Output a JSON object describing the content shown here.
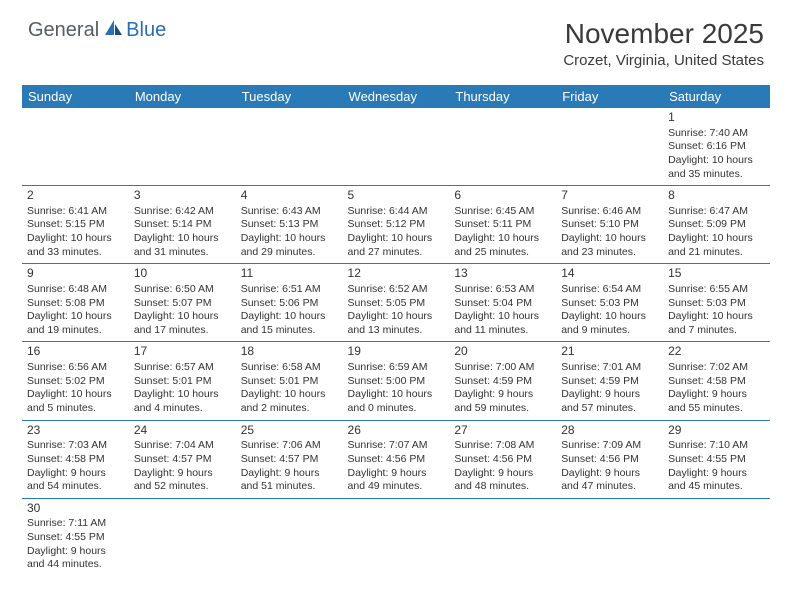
{
  "logo": {
    "general": "General",
    "blue": "Blue"
  },
  "title": "November 2025",
  "location": "Crozet, Virginia, United States",
  "colors": {
    "header_bg": "#2a7ab8",
    "header_fg": "#ffffff",
    "border": "#2a7ab8",
    "logo_gray": "#555c63",
    "logo_blue": "#2a6fb0"
  },
  "day_headers": [
    "Sunday",
    "Monday",
    "Tuesday",
    "Wednesday",
    "Thursday",
    "Friday",
    "Saturday"
  ],
  "weeks": [
    [
      null,
      null,
      null,
      null,
      null,
      null,
      {
        "n": "1",
        "sr": "Sunrise: 7:40 AM",
        "ss": "Sunset: 6:16 PM",
        "d1": "Daylight: 10 hours",
        "d2": "and 35 minutes."
      }
    ],
    [
      {
        "n": "2",
        "sr": "Sunrise: 6:41 AM",
        "ss": "Sunset: 5:15 PM",
        "d1": "Daylight: 10 hours",
        "d2": "and 33 minutes."
      },
      {
        "n": "3",
        "sr": "Sunrise: 6:42 AM",
        "ss": "Sunset: 5:14 PM",
        "d1": "Daylight: 10 hours",
        "d2": "and 31 minutes."
      },
      {
        "n": "4",
        "sr": "Sunrise: 6:43 AM",
        "ss": "Sunset: 5:13 PM",
        "d1": "Daylight: 10 hours",
        "d2": "and 29 minutes."
      },
      {
        "n": "5",
        "sr": "Sunrise: 6:44 AM",
        "ss": "Sunset: 5:12 PM",
        "d1": "Daylight: 10 hours",
        "d2": "and 27 minutes."
      },
      {
        "n": "6",
        "sr": "Sunrise: 6:45 AM",
        "ss": "Sunset: 5:11 PM",
        "d1": "Daylight: 10 hours",
        "d2": "and 25 minutes."
      },
      {
        "n": "7",
        "sr": "Sunrise: 6:46 AM",
        "ss": "Sunset: 5:10 PM",
        "d1": "Daylight: 10 hours",
        "d2": "and 23 minutes."
      },
      {
        "n": "8",
        "sr": "Sunrise: 6:47 AM",
        "ss": "Sunset: 5:09 PM",
        "d1": "Daylight: 10 hours",
        "d2": "and 21 minutes."
      }
    ],
    [
      {
        "n": "9",
        "sr": "Sunrise: 6:48 AM",
        "ss": "Sunset: 5:08 PM",
        "d1": "Daylight: 10 hours",
        "d2": "and 19 minutes."
      },
      {
        "n": "10",
        "sr": "Sunrise: 6:50 AM",
        "ss": "Sunset: 5:07 PM",
        "d1": "Daylight: 10 hours",
        "d2": "and 17 minutes."
      },
      {
        "n": "11",
        "sr": "Sunrise: 6:51 AM",
        "ss": "Sunset: 5:06 PM",
        "d1": "Daylight: 10 hours",
        "d2": "and 15 minutes."
      },
      {
        "n": "12",
        "sr": "Sunrise: 6:52 AM",
        "ss": "Sunset: 5:05 PM",
        "d1": "Daylight: 10 hours",
        "d2": "and 13 minutes."
      },
      {
        "n": "13",
        "sr": "Sunrise: 6:53 AM",
        "ss": "Sunset: 5:04 PM",
        "d1": "Daylight: 10 hours",
        "d2": "and 11 minutes."
      },
      {
        "n": "14",
        "sr": "Sunrise: 6:54 AM",
        "ss": "Sunset: 5:03 PM",
        "d1": "Daylight: 10 hours",
        "d2": "and 9 minutes."
      },
      {
        "n": "15",
        "sr": "Sunrise: 6:55 AM",
        "ss": "Sunset: 5:03 PM",
        "d1": "Daylight: 10 hours",
        "d2": "and 7 minutes."
      }
    ],
    [
      {
        "n": "16",
        "sr": "Sunrise: 6:56 AM",
        "ss": "Sunset: 5:02 PM",
        "d1": "Daylight: 10 hours",
        "d2": "and 5 minutes."
      },
      {
        "n": "17",
        "sr": "Sunrise: 6:57 AM",
        "ss": "Sunset: 5:01 PM",
        "d1": "Daylight: 10 hours",
        "d2": "and 4 minutes."
      },
      {
        "n": "18",
        "sr": "Sunrise: 6:58 AM",
        "ss": "Sunset: 5:01 PM",
        "d1": "Daylight: 10 hours",
        "d2": "and 2 minutes."
      },
      {
        "n": "19",
        "sr": "Sunrise: 6:59 AM",
        "ss": "Sunset: 5:00 PM",
        "d1": "Daylight: 10 hours",
        "d2": "and 0 minutes."
      },
      {
        "n": "20",
        "sr": "Sunrise: 7:00 AM",
        "ss": "Sunset: 4:59 PM",
        "d1": "Daylight: 9 hours",
        "d2": "and 59 minutes."
      },
      {
        "n": "21",
        "sr": "Sunrise: 7:01 AM",
        "ss": "Sunset: 4:59 PM",
        "d1": "Daylight: 9 hours",
        "d2": "and 57 minutes."
      },
      {
        "n": "22",
        "sr": "Sunrise: 7:02 AM",
        "ss": "Sunset: 4:58 PM",
        "d1": "Daylight: 9 hours",
        "d2": "and 55 minutes."
      }
    ],
    [
      {
        "n": "23",
        "sr": "Sunrise: 7:03 AM",
        "ss": "Sunset: 4:58 PM",
        "d1": "Daylight: 9 hours",
        "d2": "and 54 minutes."
      },
      {
        "n": "24",
        "sr": "Sunrise: 7:04 AM",
        "ss": "Sunset: 4:57 PM",
        "d1": "Daylight: 9 hours",
        "d2": "and 52 minutes."
      },
      {
        "n": "25",
        "sr": "Sunrise: 7:06 AM",
        "ss": "Sunset: 4:57 PM",
        "d1": "Daylight: 9 hours",
        "d2": "and 51 minutes."
      },
      {
        "n": "26",
        "sr": "Sunrise: 7:07 AM",
        "ss": "Sunset: 4:56 PM",
        "d1": "Daylight: 9 hours",
        "d2": "and 49 minutes."
      },
      {
        "n": "27",
        "sr": "Sunrise: 7:08 AM",
        "ss": "Sunset: 4:56 PM",
        "d1": "Daylight: 9 hours",
        "d2": "and 48 minutes."
      },
      {
        "n": "28",
        "sr": "Sunrise: 7:09 AM",
        "ss": "Sunset: 4:56 PM",
        "d1": "Daylight: 9 hours",
        "d2": "and 47 minutes."
      },
      {
        "n": "29",
        "sr": "Sunrise: 7:10 AM",
        "ss": "Sunset: 4:55 PM",
        "d1": "Daylight: 9 hours",
        "d2": "and 45 minutes."
      }
    ],
    [
      {
        "n": "30",
        "sr": "Sunrise: 7:11 AM",
        "ss": "Sunset: 4:55 PM",
        "d1": "Daylight: 9 hours",
        "d2": "and 44 minutes."
      },
      null,
      null,
      null,
      null,
      null,
      null
    ]
  ]
}
